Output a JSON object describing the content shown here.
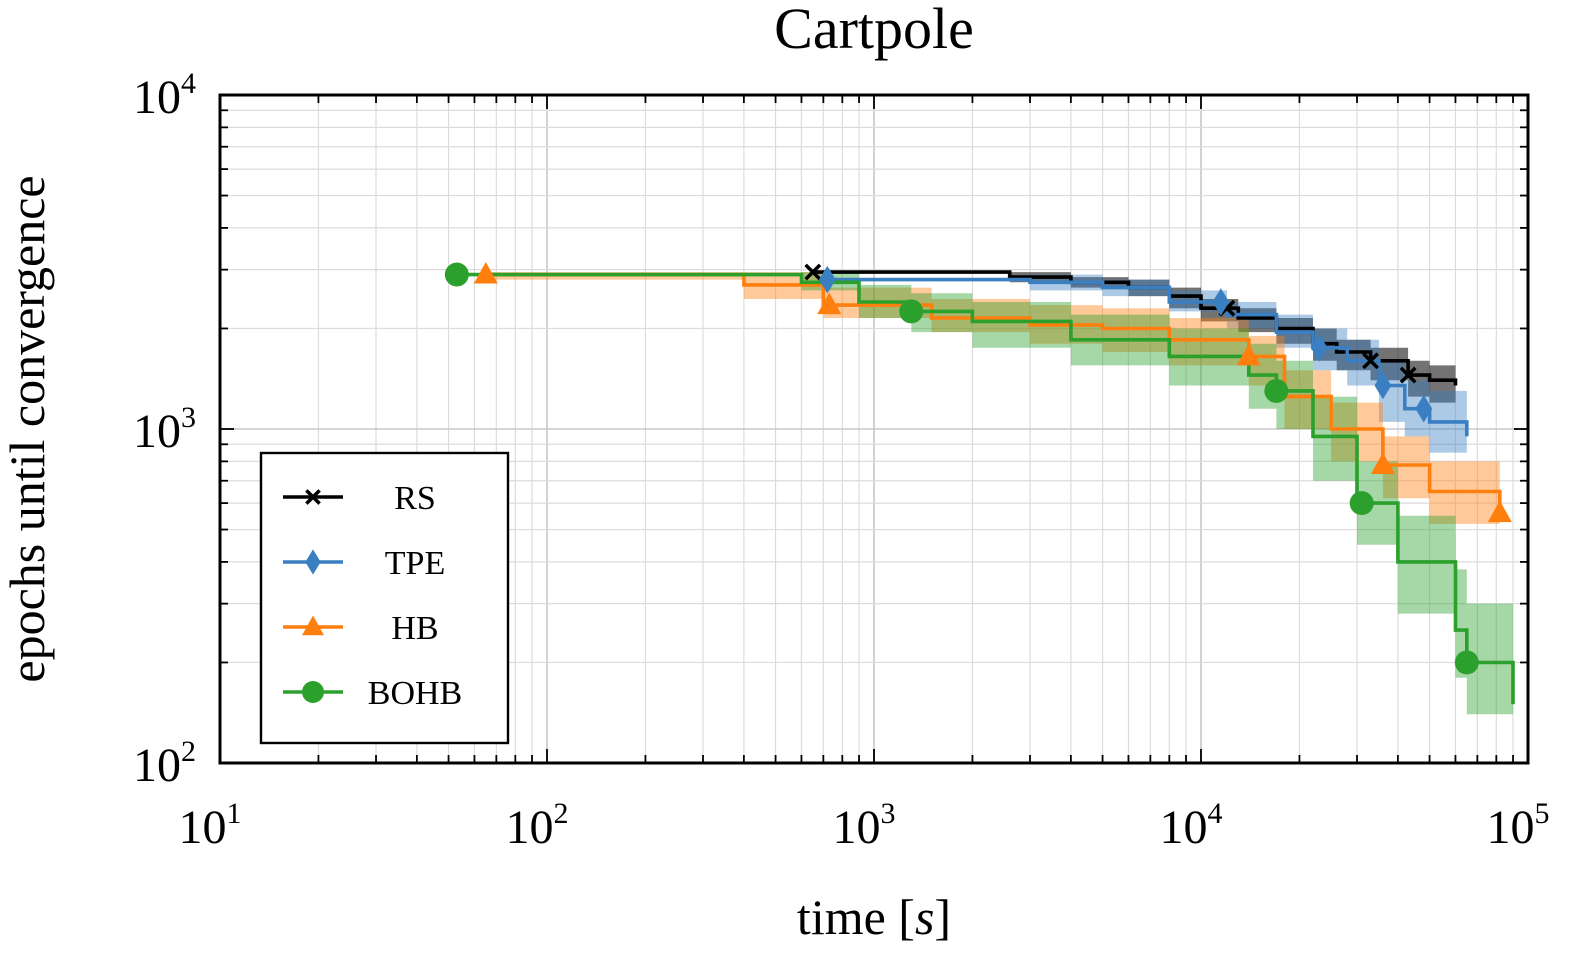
{
  "chart_data": {
    "type": "line",
    "title": "Cartpole",
    "xlabel": "time [s]",
    "ylabel": "epochs until convergence",
    "xscale": "log",
    "yscale": "log",
    "xlim": [
      10,
      100000
    ],
    "ylim": [
      100,
      10000
    ],
    "grid": true,
    "legend_position": "bottom-left",
    "x_ticks": [
      {
        "base": "10",
        "exp": "1",
        "value": 10
      },
      {
        "base": "10",
        "exp": "2",
        "value": 100
      },
      {
        "base": "10",
        "exp": "3",
        "value": 1000
      },
      {
        "base": "10",
        "exp": "4",
        "value": 10000
      },
      {
        "base": "10",
        "exp": "5",
        "value": 100000
      }
    ],
    "y_ticks": [
      {
        "base": "10",
        "exp": "2",
        "value": 100
      },
      {
        "base": "10",
        "exp": "3",
        "value": 1000
      },
      {
        "base": "10",
        "exp": "4",
        "value": 10000
      }
    ],
    "series": [
      {
        "name": "RS",
        "color": "#000000",
        "marker": "x",
        "x": [
          650,
          1000,
          2000,
          2600,
          4000,
          6000,
          8000,
          10000,
          13000,
          17000,
          22000,
          26000,
          33000,
          43000,
          50000,
          60000
        ],
        "y": [
          2950,
          2950,
          2950,
          2850,
          2750,
          2650,
          2500,
          2300,
          2150,
          2000,
          1800,
          1700,
          1600,
          1450,
          1400,
          1350
        ],
        "lower": [
          2950,
          2950,
          2950,
          2750,
          2650,
          2500,
          2300,
          2100,
          1950,
          1800,
          1600,
          1500,
          1400,
          1250,
          1200,
          1150
        ],
        "upper": [
          2950,
          2950,
          2950,
          2950,
          2850,
          2800,
          2650,
          2450,
          2300,
          2150,
          2000,
          1850,
          1750,
          1600,
          1550,
          1500
        ],
        "marker_x": [
          650,
          12000,
          33000,
          43000
        ]
      },
      {
        "name": "TPE",
        "color": "#3a7fc1",
        "marker": "diamond",
        "x": [
          720,
          1000,
          2000,
          3000,
          5000,
          8000,
          12000,
          17000,
          22000,
          28000,
          35000,
          42000,
          50000,
          65000
        ],
        "y": [
          2800,
          2800,
          2800,
          2750,
          2650,
          2400,
          2200,
          1950,
          1750,
          1600,
          1350,
          1150,
          1050,
          950
        ],
        "lower": [
          2800,
          2800,
          2800,
          2600,
          2500,
          2250,
          2000,
          1750,
          1500,
          1350,
          1050,
          950,
          850,
          800
        ],
        "upper": [
          2800,
          2800,
          2800,
          2900,
          2800,
          2600,
          2400,
          2200,
          2000,
          1850,
          1600,
          1400,
          1300,
          1200
        ],
        "marker_x": [
          720,
          11500,
          23000,
          36000,
          48000
        ]
      },
      {
        "name": "HB",
        "color": "#ff7f0e",
        "marker": "triangle",
        "x": [
          65,
          100,
          250,
          400,
          700,
          1500,
          3000,
          5000,
          8000,
          14000,
          18000,
          25000,
          36000,
          50000,
          82000
        ],
        "y": [
          2900,
          2900,
          2900,
          2700,
          2350,
          2150,
          2050,
          2000,
          1850,
          1650,
          1250,
          1000,
          780,
          650,
          560
        ],
        "lower": [
          2800,
          2800,
          2800,
          2450,
          2150,
          1950,
          1800,
          1700,
          1550,
          1350,
          1000,
          800,
          620,
          520,
          450
        ],
        "upper": [
          2950,
          2950,
          2950,
          2950,
          2650,
          2450,
          2350,
          2300,
          2150,
          1900,
          1500,
          1200,
          950,
          800,
          700
        ],
        "marker_x": [
          65,
          730,
          14000,
          36000,
          82000
        ]
      },
      {
        "name": "BOHB",
        "color": "#2ca02c",
        "marker": "circle",
        "x": [
          53,
          100,
          280,
          600,
          900,
          1300,
          2000,
          4000,
          8000,
          14000,
          17000,
          22000,
          30000,
          40000,
          60000,
          65000,
          90000
        ],
        "y": [
          2900,
          2900,
          2900,
          2750,
          2400,
          2250,
          2100,
          1850,
          1650,
          1450,
          1300,
          950,
          600,
          400,
          250,
          200,
          150
        ],
        "lower": [
          2900,
          2900,
          2900,
          2600,
          2150,
          1950,
          1750,
          1550,
          1350,
          1150,
          1000,
          700,
          450,
          280,
          180,
          140,
          115
        ],
        "upper": [
          2900,
          2900,
          2900,
          2950,
          2700,
          2550,
          2400,
          2200,
          2000,
          1800,
          1600,
          1250,
          800,
          550,
          380,
          300,
          220
        ],
        "marker_x": [
          53,
          1300,
          17000,
          31000,
          65000
        ]
      }
    ]
  }
}
